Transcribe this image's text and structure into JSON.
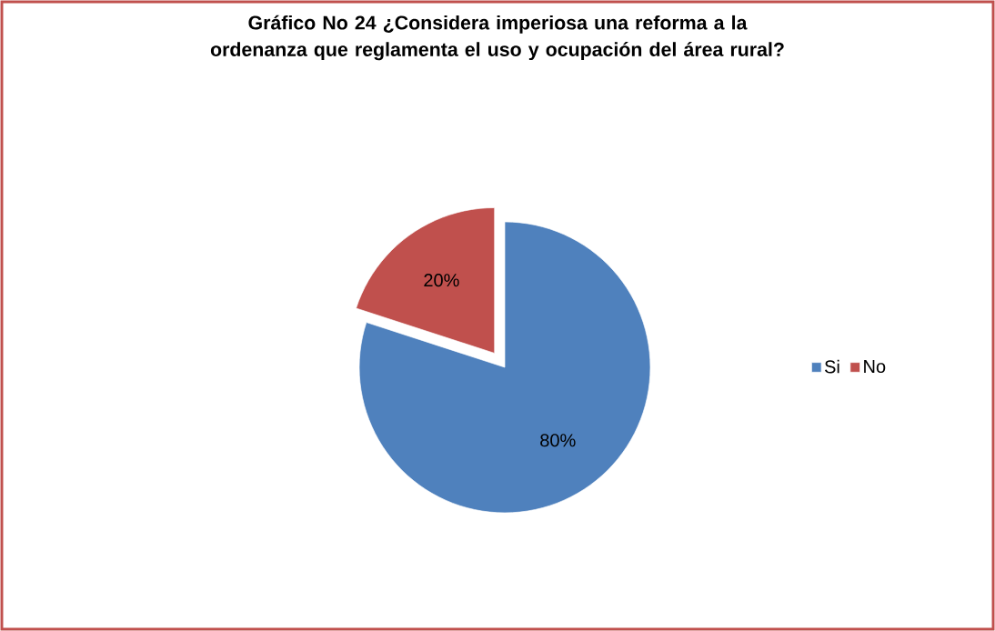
{
  "chart_data": {
    "type": "pie",
    "title": "Gráfico No 24 ¿Considera imperiosa una reforma a la ordenanza que reglamenta el uso y ocupación del área rural?",
    "categories": [
      "Si",
      "No"
    ],
    "values": [
      80,
      20
    ],
    "value_labels": [
      "80%",
      "20%"
    ],
    "colors": [
      "#4f81bd",
      "#c0504d"
    ],
    "legend": "right"
  }
}
